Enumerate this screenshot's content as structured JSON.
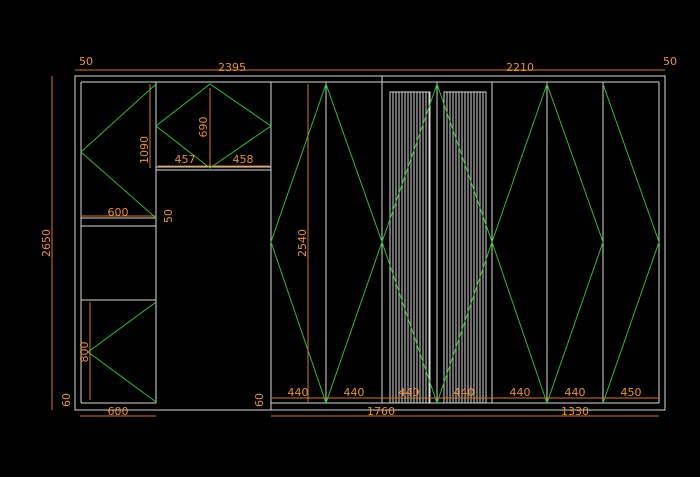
{
  "drawing": {
    "dimensions": [
      "50",
      "2395",
      "2210",
      "50",
      "2650",
      "1090",
      "690",
      "457",
      "458",
      "600",
      "50",
      "2540",
      "800",
      "60",
      "600",
      "60",
      "1760",
      "1330",
      "440",
      "440",
      "440",
      "440",
      "440",
      "440",
      "450"
    ]
  }
}
